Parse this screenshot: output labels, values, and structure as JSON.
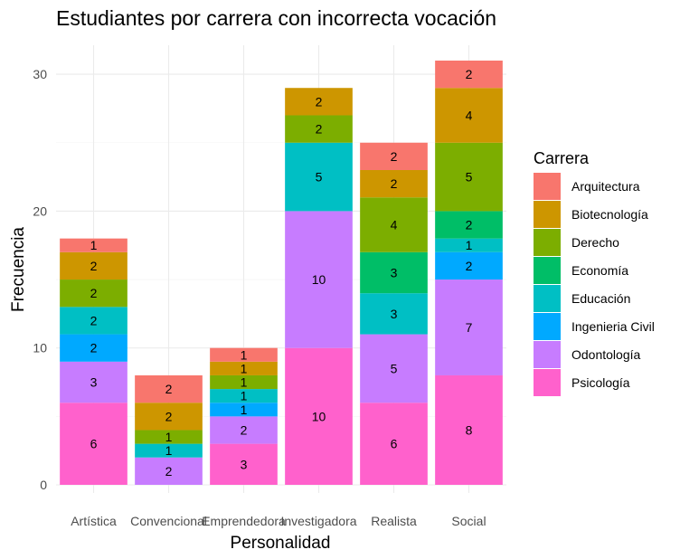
{
  "chart_data": {
    "type": "bar",
    "stacked": true,
    "title": "Estudiantes por carrera con incorrecta vocación",
    "xlabel": "Personalidad",
    "ylabel": "Frecuencia",
    "categories": [
      "Artística",
      "Convencional",
      "Emprendedora",
      "Investigadora",
      "Realista",
      "Social"
    ],
    "ylim": [
      0,
      31
    ],
    "yticks": [
      0,
      10,
      20,
      30
    ],
    "grid": true,
    "legend": {
      "title": "Carrera",
      "position": "right"
    },
    "series": [
      {
        "name": "Arquitectura",
        "color": "#F8766D",
        "values": [
          1,
          2,
          1,
          0,
          2,
          2
        ]
      },
      {
        "name": "Biotecnología",
        "color": "#CD9600",
        "values": [
          2,
          2,
          1,
          2,
          2,
          4
        ]
      },
      {
        "name": "Derecho",
        "color": "#7CAE00",
        "values": [
          2,
          1,
          1,
          2,
          4,
          5
        ]
      },
      {
        "name": "Economía",
        "color": "#00BE67",
        "values": [
          0,
          0,
          0,
          0,
          3,
          2
        ]
      },
      {
        "name": "Educación",
        "color": "#00BFC4",
        "values": [
          2,
          1,
          1,
          5,
          3,
          1
        ]
      },
      {
        "name": "Ingenieria Civil",
        "color": "#00A9FF",
        "values": [
          2,
          0,
          1,
          0,
          0,
          2
        ]
      },
      {
        "name": "Odontología",
        "color": "#C77CFF",
        "values": [
          3,
          2,
          2,
          10,
          5,
          7
        ]
      },
      {
        "name": "Psicología",
        "color": "#FF61CC",
        "values": [
          6,
          0,
          3,
          10,
          6,
          8
        ]
      }
    ]
  }
}
